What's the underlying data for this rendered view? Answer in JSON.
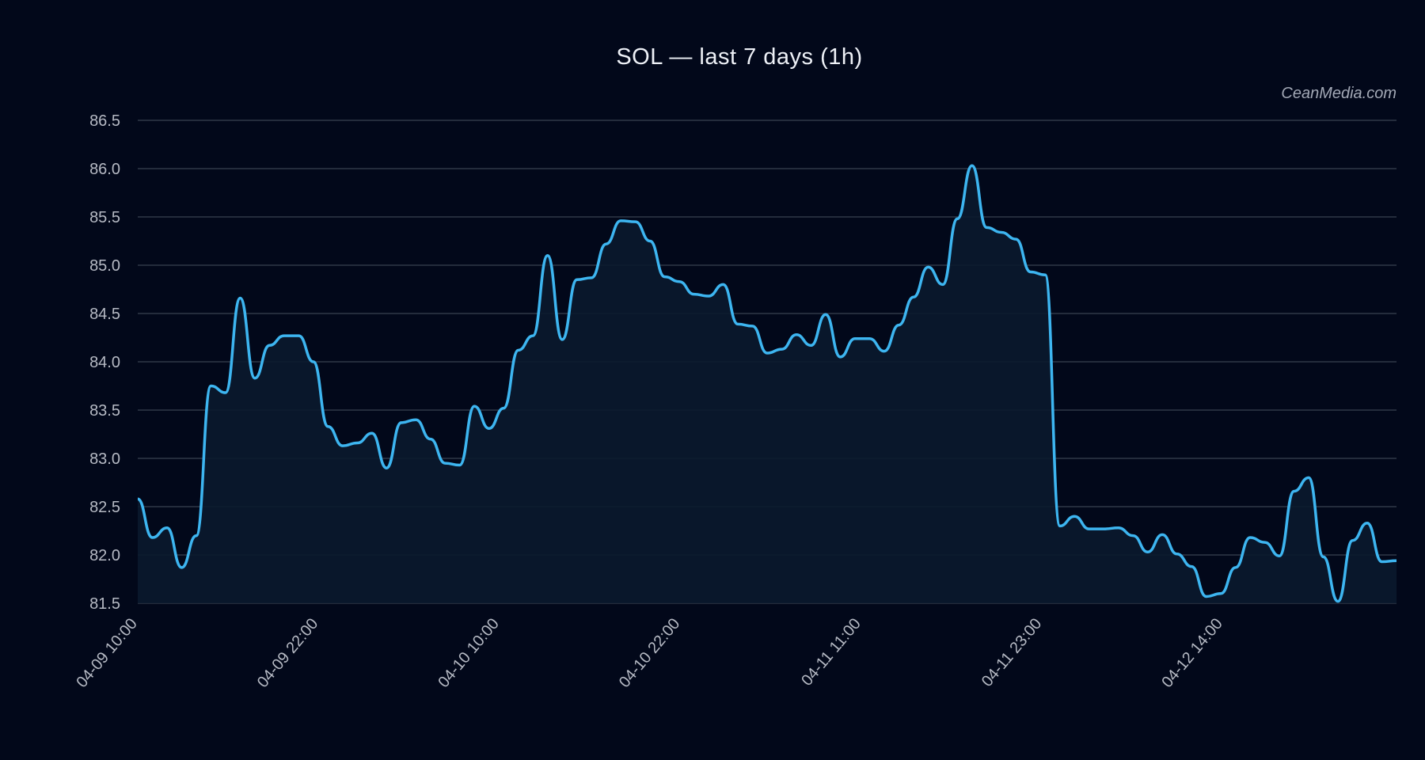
{
  "watermark": "CeanMedia.com",
  "colors": {
    "background": "#02081a",
    "line": "#3db5f0",
    "area_fill": "#0a1a2e",
    "grid": "#3a4150",
    "text": "#b6bac4"
  },
  "chart_data": {
    "type": "area",
    "title": "SOL — last 7 days (1h)",
    "xlabel": "",
    "ylabel": "",
    "ylim": [
      81.5,
      86.5
    ],
    "yticks": [
      "86.5",
      "86.0",
      "85.5",
      "85.0",
      "84.5",
      "84.0",
      "83.5",
      "83.0",
      "82.5",
      "82.0",
      "81.5"
    ],
    "xticks": [
      "04-09 10:00",
      "04-09 22:00",
      "04-10 10:00",
      "04-10 22:00",
      "04-11 11:00",
      "04-11 23:00",
      "04-12 14:00"
    ],
    "grid": "horizontal",
    "series": [
      {
        "values": [
          82.58,
          82.18,
          82.28,
          81.87,
          82.2,
          83.75,
          83.68,
          84.66,
          83.83,
          84.17,
          84.27,
          84.27,
          84.0,
          83.33,
          83.13,
          83.16,
          83.26,
          82.9,
          83.37,
          83.4,
          83.2,
          82.95,
          82.93,
          83.54,
          83.31,
          83.52,
          84.12,
          84.27,
          85.1,
          84.23,
          84.85,
          84.87,
          85.22,
          85.46,
          85.45,
          85.25,
          84.88,
          84.83,
          84.7,
          84.68,
          84.8,
          84.39,
          84.37,
          84.09,
          84.13,
          84.28,
          84.17,
          84.49,
          84.05,
          84.24,
          84.24,
          84.11,
          84.38,
          84.67,
          84.98,
          84.8,
          85.48,
          86.03,
          85.39,
          85.34,
          85.27,
          84.93,
          84.9,
          82.3,
          82.4,
          82.27,
          82.27,
          82.28,
          82.2,
          82.03,
          82.21,
          82.01,
          81.88,
          81.57,
          81.6,
          81.87,
          82.18,
          82.13,
          81.99,
          82.66,
          82.8,
          81.98,
          81.52,
          82.15,
          82.33,
          81.93,
          81.94
        ]
      }
    ]
  }
}
